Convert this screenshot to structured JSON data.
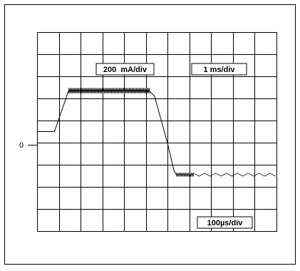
{
  "chart_data": {
    "type": "line",
    "title": "",
    "xlabel": "",
    "ylabel": "",
    "grid": true,
    "x_divisions": 11,
    "y_divisions": 9,
    "scale_labels": {
      "vertical": "200  mA/div",
      "horizontal": "1 ms/div",
      "inset_horizontal": "100µs/div"
    },
    "zero_label": "0",
    "zero_level_div": 4.5,
    "x": [
      0.0,
      0.8,
      1.45,
      5.15,
      5.4,
      6.0,
      6.3,
      6.4
    ],
    "y": [
      0.0,
      0.0,
      1.85,
      1.85,
      1.6,
      -0.55,
      -1.8,
      -1.95
    ],
    "ripple_segments": [
      {
        "x": [
          1.45,
          5.15
        ],
        "level": 1.85,
        "amplitude": 0.25,
        "period": 0.065,
        "style": "sawtooth"
      },
      {
        "x": [
          6.4,
          7.2
        ],
        "level": -1.95,
        "amplitude": 0.18,
        "period": 0.07,
        "style": "sawtooth"
      },
      {
        "x": [
          7.2,
          11.0
        ],
        "level": -1.95,
        "amplitude": 0.14,
        "period": 0.25,
        "style": "triangle"
      }
    ]
  }
}
